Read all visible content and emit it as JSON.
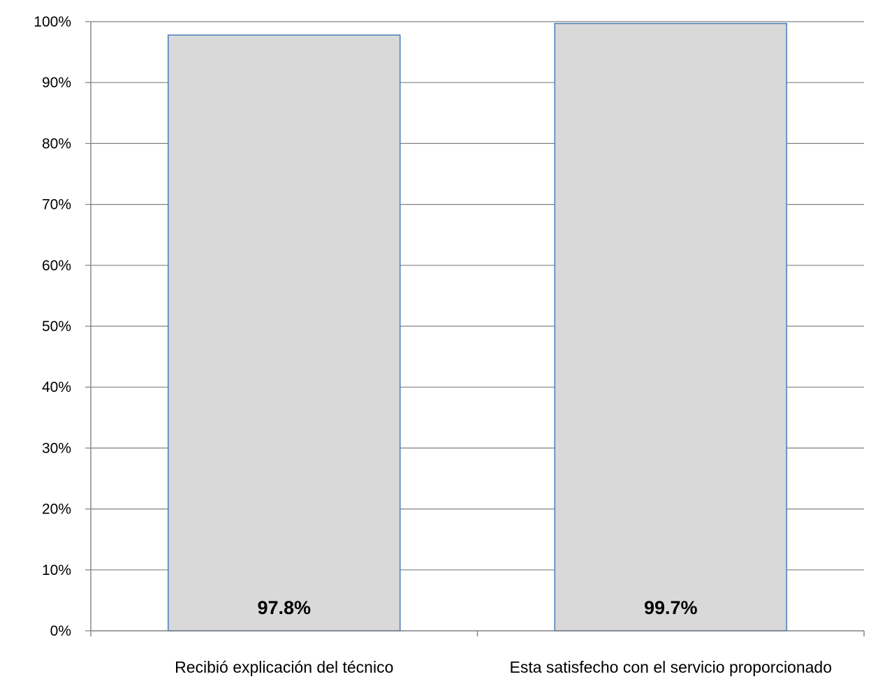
{
  "chart_data": {
    "type": "bar",
    "title": "",
    "xlabel": "",
    "ylabel": "",
    "categories": [
      "Recibió explicación del técnico",
      "Esta satisfecho con el servicio proporcionado"
    ],
    "values": [
      97.8,
      99.7
    ],
    "data_labels": [
      "97.8%",
      "99.7%"
    ],
    "ylim": [
      0,
      100
    ],
    "y_ticks": [
      0,
      10,
      20,
      30,
      40,
      50,
      60,
      70,
      80,
      90,
      100
    ],
    "y_tick_labels": [
      "0%",
      "10%",
      "20%",
      "30%",
      "40%",
      "50%",
      "60%",
      "70%",
      "80%",
      "90%",
      "100%"
    ],
    "grid": true,
    "legend": "none",
    "reference_lines": [
      {
        "value": 90,
        "color": "#22e022"
      },
      {
        "value": 60,
        "color": "#c00000"
      }
    ],
    "colors": {
      "bar_fill": "#d9d9d9",
      "bar_stroke": "#4f81bd",
      "gridline": "#808080",
      "axis": "#808080"
    }
  }
}
